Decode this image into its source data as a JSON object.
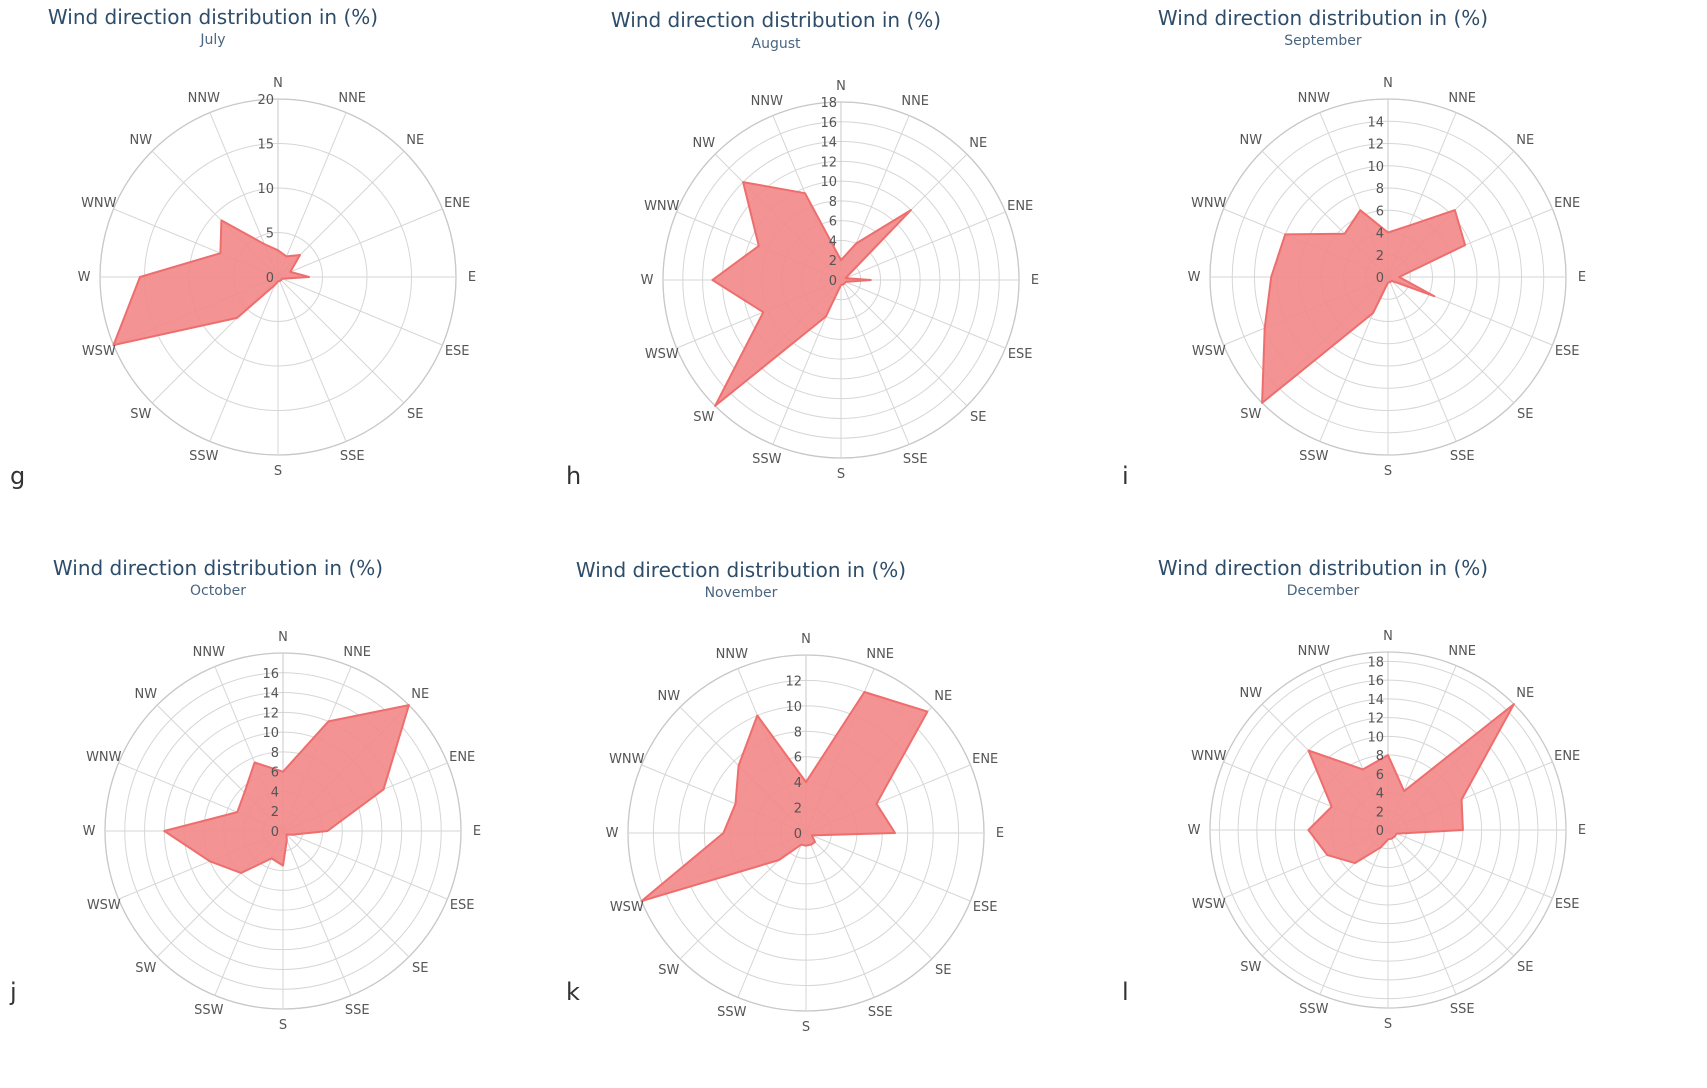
{
  "chart_data": [
    {
      "type": "polar-area",
      "panel": "g",
      "title": "Wind direction distribution in (%)",
      "subtitle": "July",
      "rmax": 20,
      "ticks": [
        0,
        5,
        10,
        15,
        20
      ],
      "directions": [
        "N",
        "NNE",
        "NE",
        "ENE",
        "E",
        "ESE",
        "SE",
        "SSE",
        "S",
        "SSW",
        "SW",
        "WSW",
        "W",
        "WNW",
        "NW",
        "NNW"
      ],
      "values": [
        3,
        2.5,
        3.5,
        1.5,
        3.5,
        0.5,
        0.5,
        0.5,
        0.5,
        1,
        6.5,
        20,
        15.5,
        7,
        9,
        4
      ]
    },
    {
      "type": "polar-area",
      "panel": "h",
      "title": "Wind direction distribution in (%)",
      "subtitle": "August",
      "rmax": 18,
      "ticks": [
        0,
        2,
        4,
        6,
        8,
        10,
        12,
        14,
        16,
        18
      ],
      "directions": [
        "N",
        "NNE",
        "NE",
        "ENE",
        "E",
        "ESE",
        "SE",
        "SSE",
        "S",
        "SSW",
        "SW",
        "WSW",
        "W",
        "WNW",
        "NW",
        "NNW"
      ],
      "values": [
        2,
        4,
        10,
        0.5,
        3,
        0.5,
        0.5,
        0.5,
        0.5,
        4,
        18,
        8.5,
        13,
        9,
        14,
        9.5
      ]
    },
    {
      "type": "polar-area",
      "panel": "i",
      "title": "Wind direction distribution in (%)",
      "subtitle": "September",
      "rmax": 16,
      "ticks": [
        0,
        2,
        4,
        6,
        8,
        10,
        12,
        14
      ],
      "directions": [
        "N",
        "NNE",
        "NE",
        "ENE",
        "E",
        "ESE",
        "SE",
        "SSE",
        "S",
        "SSW",
        "SW",
        "WSW",
        "W",
        "WNW",
        "NW",
        "NNW"
      ],
      "values": [
        4,
        5,
        8.5,
        7.5,
        1,
        4.5,
        0.5,
        0.5,
        0.5,
        3.5,
        16,
        12,
        10.5,
        10,
        5.5,
        6.5
      ]
    },
    {
      "type": "polar-area",
      "panel": "j",
      "title": "Wind direction distribution in (%)",
      "subtitle": "October",
      "rmax": 18,
      "ticks": [
        0,
        2,
        4,
        6,
        8,
        10,
        12,
        14,
        16
      ],
      "directions": [
        "N",
        "NNE",
        "NE",
        "ENE",
        "E",
        "ESE",
        "SE",
        "SSE",
        "S",
        "SSW",
        "SW",
        "WSW",
        "W",
        "WNW",
        "NW",
        "NNW"
      ],
      "values": [
        6,
        12,
        18,
        11,
        4.5,
        1,
        0.5,
        1,
        3.5,
        3,
        6,
        8,
        12,
        5,
        5.5,
        7.5
      ]
    },
    {
      "type": "polar-area",
      "panel": "k",
      "title": "Wind direction distribution in (%)",
      "subtitle": "November",
      "rmax": 14,
      "ticks": [
        0,
        2,
        4,
        6,
        8,
        10,
        12
      ],
      "directions": [
        "N",
        "NNE",
        "NE",
        "ENE",
        "E",
        "ESE",
        "SE",
        "SSE",
        "S",
        "SSW",
        "SW",
        "WSW",
        "W",
        "WNW",
        "NW",
        "NNW"
      ],
      "values": [
        4,
        12,
        13.5,
        6,
        7,
        0.5,
        1,
        1,
        1,
        1,
        3,
        14,
        6.5,
        6,
        7.5,
        10
      ]
    },
    {
      "type": "polar-area",
      "panel": "l",
      "title": "Wind direction distribution in (%)",
      "subtitle": "December",
      "rmax": 19,
      "ticks": [
        0,
        2,
        4,
        6,
        8,
        10,
        12,
        14,
        16,
        18
      ],
      "directions": [
        "N",
        "NNE",
        "NE",
        "ENE",
        "E",
        "ESE",
        "SE",
        "SSE",
        "S",
        "SSW",
        "SW",
        "WSW",
        "W",
        "WNW",
        "NW",
        "NNW"
      ],
      "values": [
        8,
        4.5,
        19,
        8.5,
        8,
        1,
        1,
        1,
        1,
        2,
        5,
        7,
        8.5,
        6.5,
        12,
        7
      ]
    }
  ]
}
